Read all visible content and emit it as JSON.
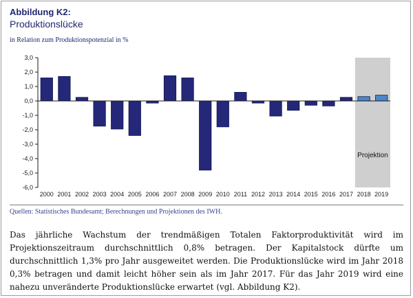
{
  "figure": {
    "label": "Abbildung K2:",
    "title": "Produktionslücke",
    "subtitle": "in Relation zum Produktionspotenzial in %"
  },
  "chart_data": {
    "type": "bar",
    "categories": [
      "2000",
      "2001",
      "2002",
      "2003",
      "2004",
      "2005",
      "2006",
      "2007",
      "2008",
      "2009",
      "2010",
      "2011",
      "2012",
      "2013",
      "2014",
      "2015",
      "2016",
      "2017",
      "2018",
      "2019"
    ],
    "values": [
      1.6,
      1.7,
      0.25,
      -1.75,
      -1.95,
      -2.4,
      -0.15,
      1.75,
      1.6,
      -4.8,
      -1.8,
      0.6,
      -0.15,
      -1.05,
      -0.65,
      -0.3,
      -0.35,
      0.25,
      0.3,
      0.4
    ],
    "ylim": [
      -6,
      3
    ],
    "yticks": [
      "3,0",
      "2,0",
      "1,0",
      "0,0",
      "-1,0",
      "-2,0",
      "-3,0",
      "-4,0",
      "-5,0",
      "-6,0"
    ],
    "ytick_values": [
      3,
      2,
      1,
      0,
      -1,
      -2,
      -3,
      -4,
      -5,
      -6
    ],
    "projection_start_index": 18,
    "projection_label": "Projektion",
    "colors": {
      "bar": "#252778",
      "projection_bar": "#4a86c8",
      "projection_band": "#cfcfcf"
    },
    "grid": false,
    "legend": "none"
  },
  "source": "Quellen: Statistisches Bundesamt; Berechnungen und Projektionen des IWH.",
  "body_text": "Das jährliche Wachstum der trendmäßigen Totalen Faktorproduktivität wird im Projektionszeitraum durchschnittlich 0,8% betragen. Der Kapitalstock dürfte um durchschnittlich 1,3% pro Jahr ausgeweitet werden. Die Produktionslücke wird im Jahr 2018 0,3% betragen und damit leicht höher sein als im Jahr 2017. Für das Jahr 2019 wird eine nahezu unveränderte Produktionslücke erwartet (vgl. Abbildung K2)."
}
